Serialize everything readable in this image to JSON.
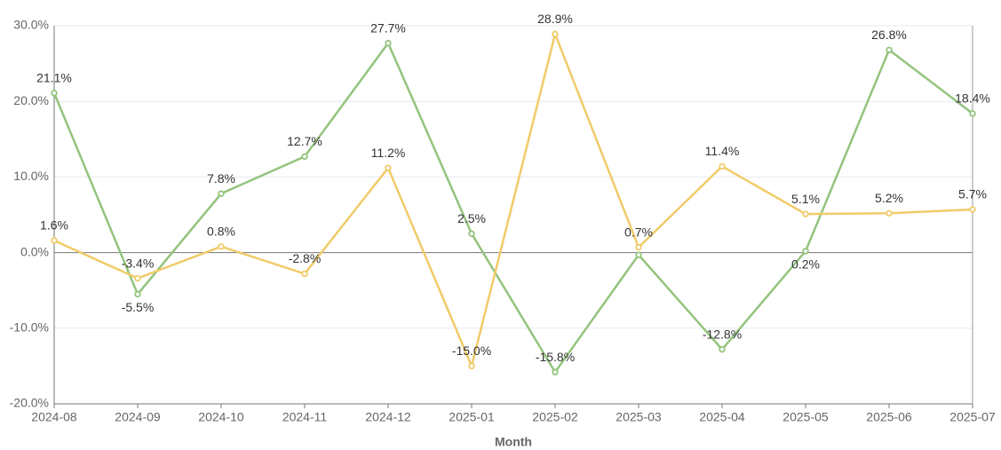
{
  "chart_data": {
    "type": "line",
    "x_label": "Month",
    "categories": [
      "2024-08",
      "2024-09",
      "2024-10",
      "2024-11",
      "2024-12",
      "2025-01",
      "2025-02",
      "2025-03",
      "2025-04",
      "2025-05",
      "2025-06",
      "2025-07"
    ],
    "series": [
      {
        "color": "#93c47d",
        "values": [
          21.1,
          -5.5,
          7.8,
          12.7,
          27.7,
          2.5,
          -15.8,
          -0.3,
          -12.8,
          0.2,
          26.8,
          18.4
        ],
        "value_labels": [
          "21.1%",
          "-5.5%",
          "7.8%",
          "12.7%",
          "27.7%",
          "2.5%",
          "-15.8%",
          null,
          "-12.8%",
          "0.2%",
          "26.8%",
          "18.4%"
        ]
      },
      {
        "color": "#f0cb69",
        "values": [
          1.6,
          -3.4,
          0.8,
          -2.8,
          11.2,
          -15.0,
          28.9,
          0.7,
          11.4,
          5.1,
          5.2,
          5.7
        ],
        "value_labels": [
          "1.6%",
          "-3.4%",
          "0.8%",
          "-2.8%",
          "11.2%",
          "-15.0%",
          "28.9%",
          "0.7%",
          "11.4%",
          "5.1%",
          "5.2%",
          "5.7%"
        ]
      }
    ],
    "ylim": [
      -20,
      30
    ],
    "yticks": [
      {
        "value": -20,
        "label": "-20.0%"
      },
      {
        "value": -10,
        "label": "-10.0%"
      },
      {
        "value": 0,
        "label": "0.0%"
      },
      {
        "value": 10,
        "label": "10.0%"
      },
      {
        "value": 20,
        "label": "20.0%"
      },
      {
        "value": 30,
        "label": "30.0%"
      }
    ],
    "grid": true
  }
}
